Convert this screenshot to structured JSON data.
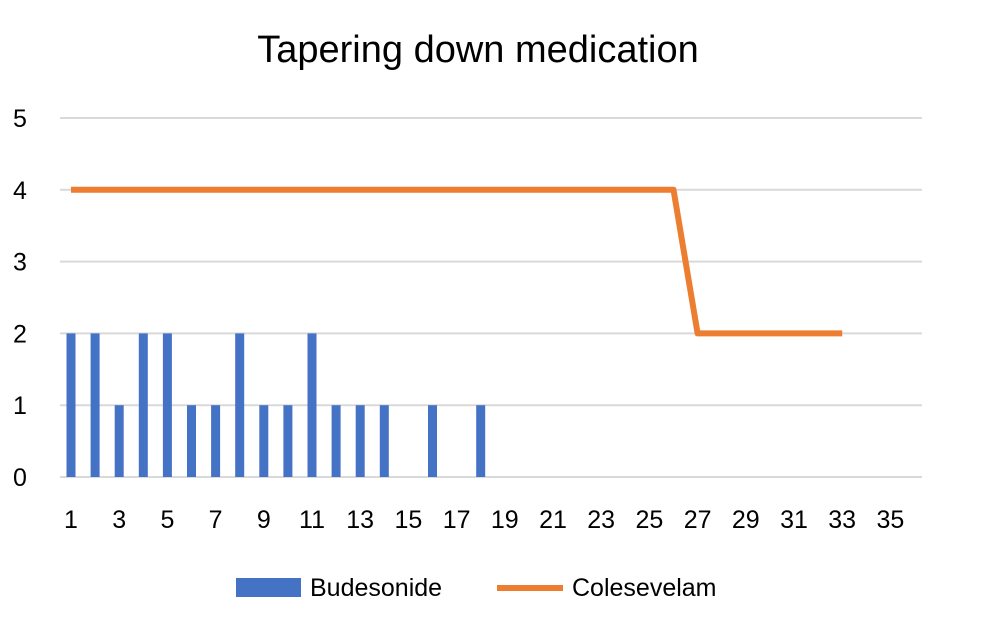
{
  "chart_data": {
    "type": "bar",
    "title": "Tapering down medication",
    "xlabel": "",
    "ylabel": "",
    "x": [
      1,
      2,
      3,
      4,
      5,
      6,
      7,
      8,
      9,
      10,
      11,
      12,
      13,
      14,
      15,
      16,
      17,
      18,
      19,
      20,
      21,
      22,
      23,
      24,
      25,
      26,
      27,
      28,
      29,
      30,
      31,
      32,
      33,
      34,
      35
    ],
    "x_tick_labels": [
      "1",
      "3",
      "5",
      "7",
      "9",
      "11",
      "13",
      "15",
      "17",
      "19",
      "21",
      "23",
      "25",
      "27",
      "29",
      "31",
      "33",
      "35"
    ],
    "ylim": [
      0,
      5
    ],
    "y_ticks": [
      0,
      1,
      2,
      3,
      4,
      5
    ],
    "grid": true,
    "legend_position": "bottom",
    "series": [
      {
        "name": "Budesonide",
        "type": "bar",
        "color": "#4472c4",
        "values": [
          2,
          2,
          1,
          2,
          2,
          1,
          1,
          2,
          1,
          1,
          2,
          1,
          1,
          1,
          0,
          1,
          0,
          1,
          0,
          0,
          0,
          0,
          0,
          0,
          0,
          0,
          0,
          0,
          0,
          0,
          0,
          0,
          0,
          0,
          0
        ]
      },
      {
        "name": "Colesevelam",
        "type": "line",
        "color": "#ed7d31",
        "x": [
          1,
          2,
          3,
          4,
          5,
          6,
          7,
          8,
          9,
          10,
          11,
          12,
          13,
          14,
          15,
          16,
          17,
          18,
          19,
          20,
          21,
          22,
          23,
          24,
          25,
          26,
          27,
          28,
          29,
          30,
          31,
          32,
          33
        ],
        "values": [
          4,
          4,
          4,
          4,
          4,
          4,
          4,
          4,
          4,
          4,
          4,
          4,
          4,
          4,
          4,
          4,
          4,
          4,
          4,
          4,
          4,
          4,
          4,
          4,
          4,
          4,
          2,
          2,
          2,
          2,
          2,
          2,
          2
        ]
      }
    ]
  }
}
